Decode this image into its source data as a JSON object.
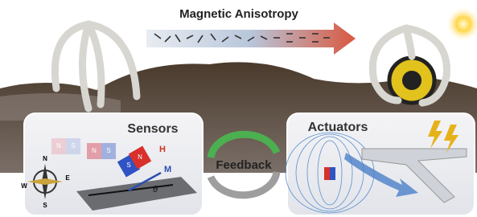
{
  "title": "Magnetic Anisotropy",
  "panels": [
    {
      "label": "Sensors"
    },
    {
      "label": "Actuators"
    }
  ],
  "center": {
    "label": "Feedback"
  },
  "sensor_labels": {
    "field": "H",
    "magnetization": "M",
    "angle": "θ"
  },
  "compass": [
    "N",
    "E",
    "S",
    "W"
  ],
  "magnets": [
    [
      "N",
      "S"
    ],
    [
      "N",
      "S"
    ],
    [
      "N",
      "S"
    ]
  ]
}
